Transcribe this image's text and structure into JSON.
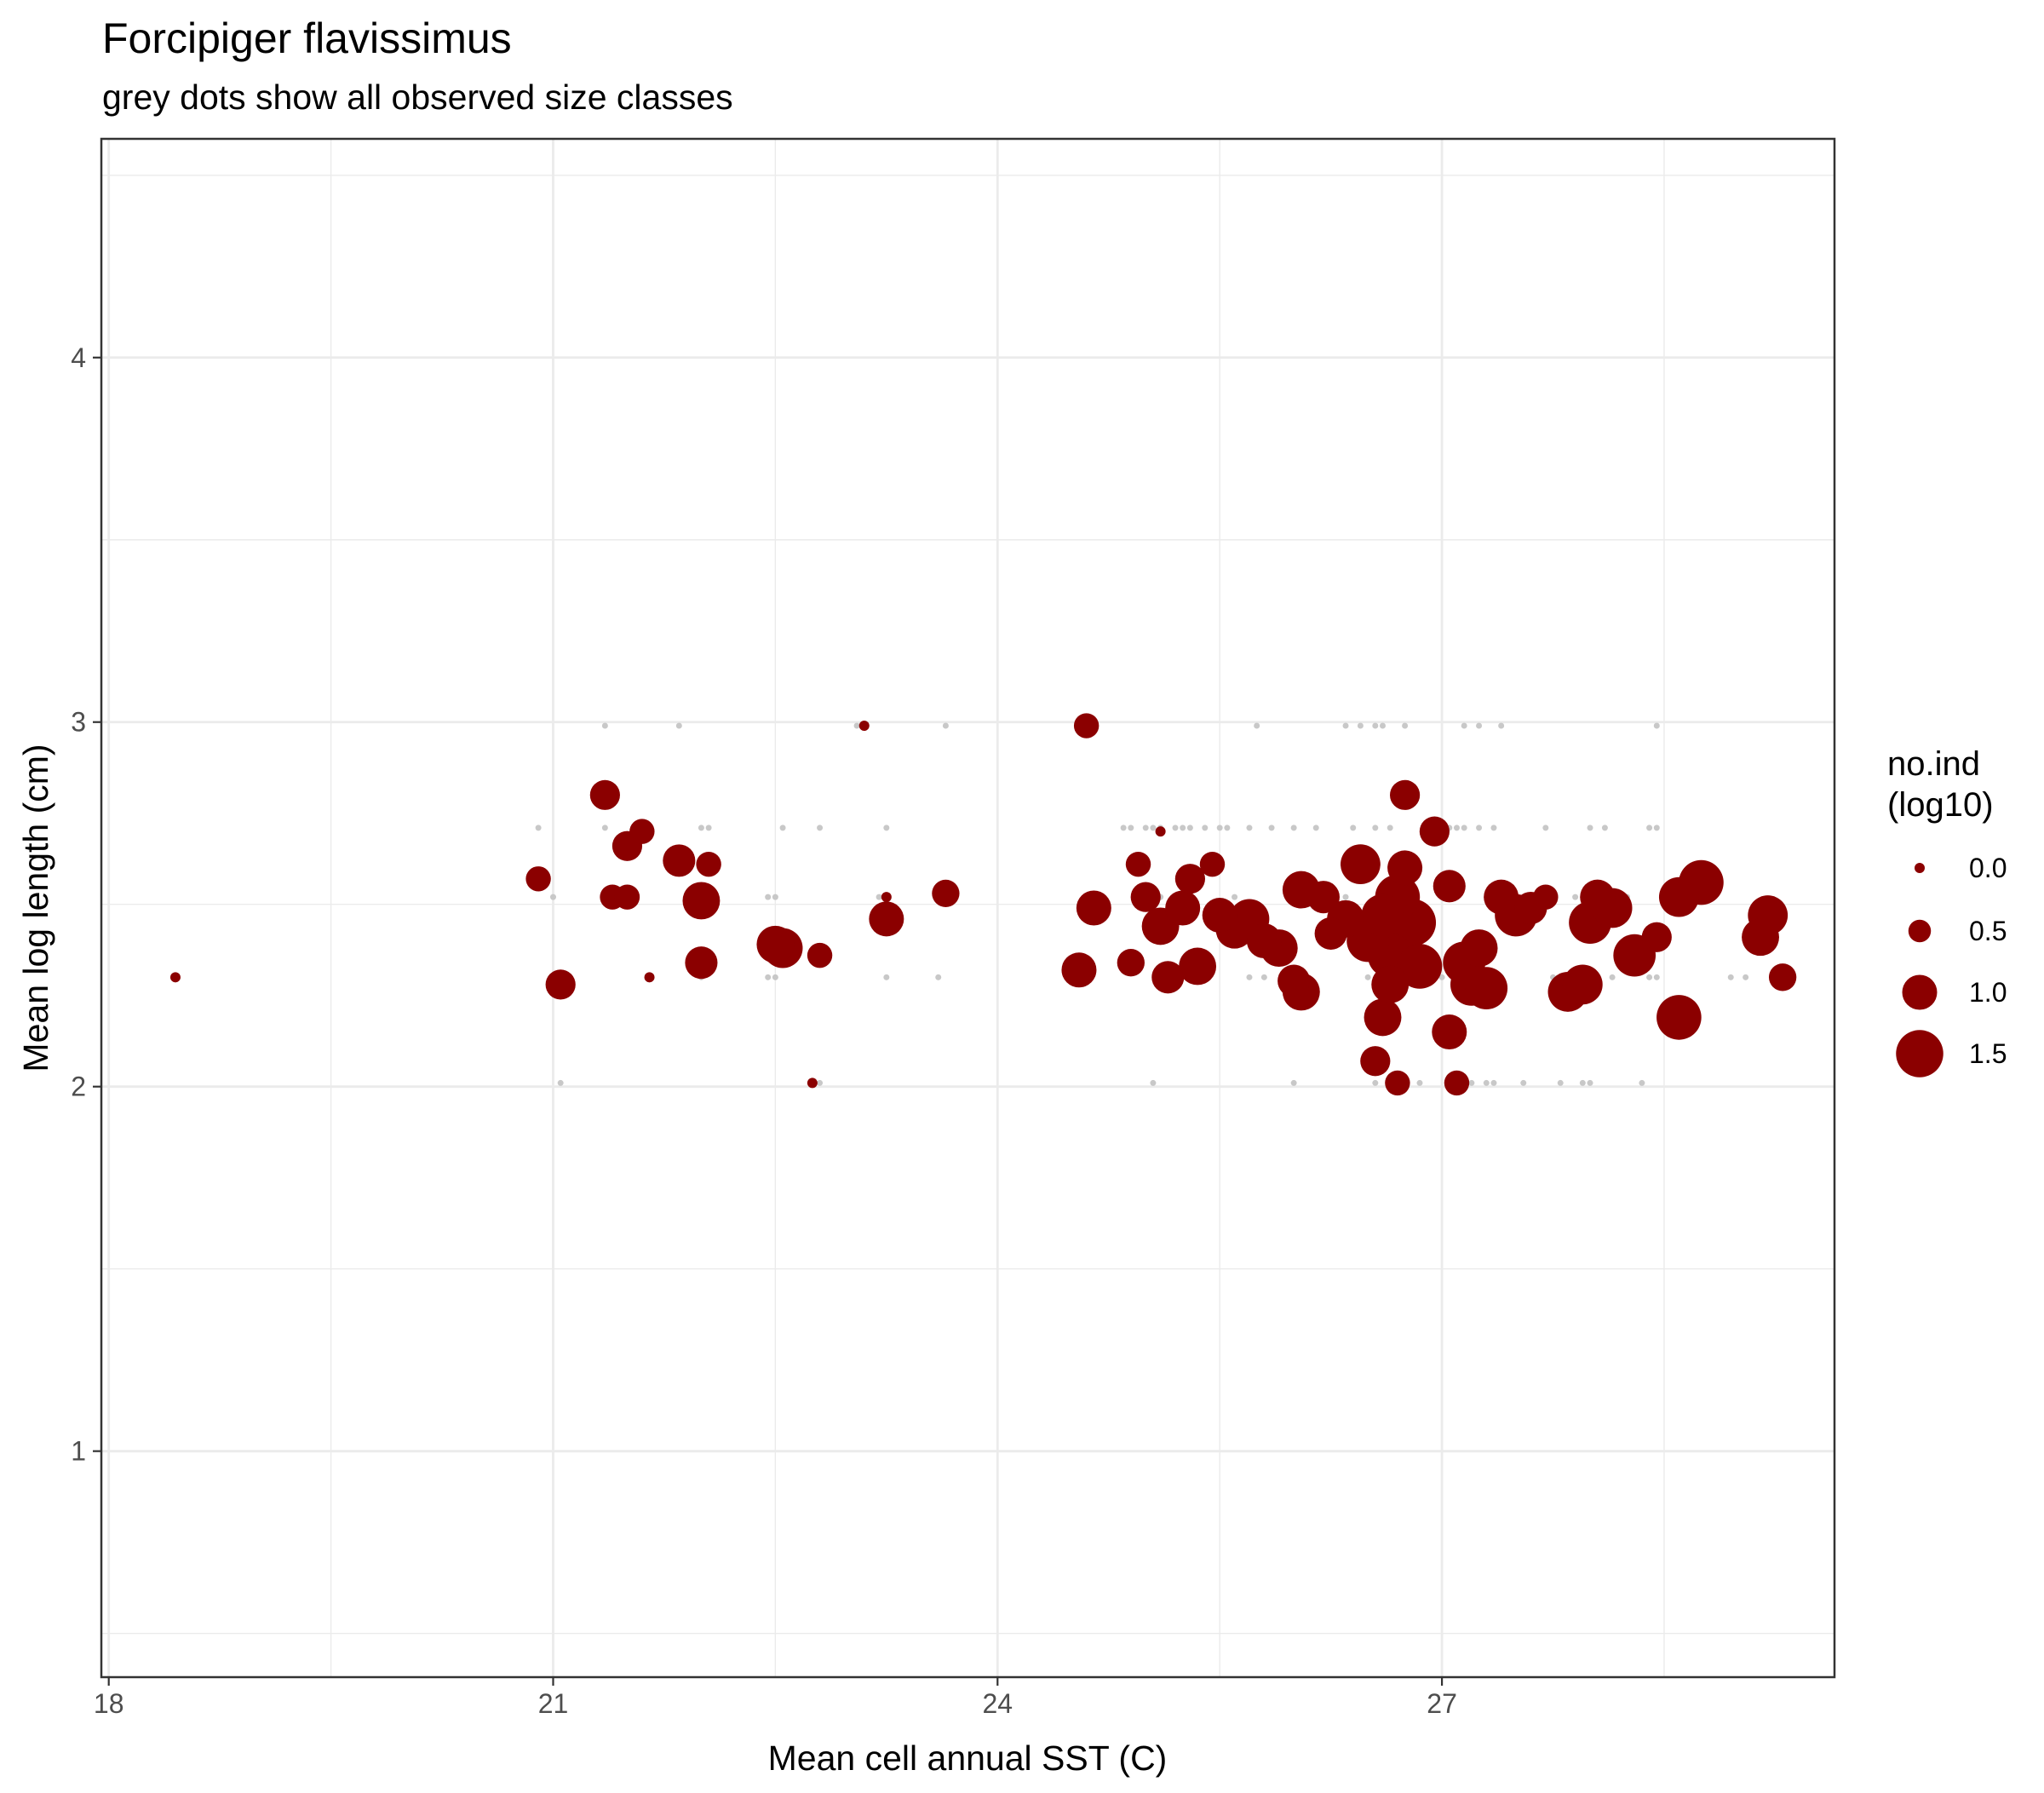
{
  "chart_data": {
    "type": "scatter",
    "title": "Forcipiger flavissimus",
    "subtitle": "grey dots show all observed size classes",
    "xlabel": "Mean cell annual SST (C)",
    "ylabel": "Mean log length (cm)",
    "xlim": [
      17.95,
      29.65
    ],
    "ylim": [
      0.38,
      4.6
    ],
    "x_ticks": [
      18,
      21,
      24,
      27
    ],
    "x_tick_labels": [
      "18",
      "21",
      "24",
      "27"
    ],
    "y_ticks": [
      1,
      2,
      3,
      4
    ],
    "y_tick_labels": [
      "1",
      "2",
      "3",
      "4"
    ],
    "grid": true,
    "legend": {
      "title_lines": [
        "no.ind",
        "(log10)"
      ],
      "position": "right",
      "entries": [
        {
          "label": "0.0",
          "value": 0.0
        },
        {
          "label": "0.5",
          "value": 0.5
        },
        {
          "label": "1.0",
          "value": 1.0
        },
        {
          "label": "1.5",
          "value": 1.5
        }
      ]
    },
    "colors": {
      "points": "#8b0000",
      "grey_points": "#c8c8c8",
      "grid": "#ebebeb",
      "panel_border": "#333333",
      "text": "#000000",
      "tick_text": "#4d4d4d"
    },
    "grey_series": {
      "name": "all observed size classes",
      "points": [
        [
          20.9,
          2.71
        ],
        [
          21.0,
          2.52
        ],
        [
          21.05,
          2.01
        ],
        [
          21.35,
          2.99
        ],
        [
          21.35,
          2.71
        ],
        [
          21.45,
          2.52
        ],
        [
          21.6,
          2.71
        ],
        [
          21.65,
          2.3
        ],
        [
          21.85,
          2.99
        ],
        [
          21.95,
          2.52
        ],
        [
          22.0,
          2.71
        ],
        [
          22.05,
          2.71
        ],
        [
          22.0,
          2.3
        ],
        [
          22.45,
          2.52
        ],
        [
          22.5,
          2.52
        ],
        [
          22.45,
          2.3
        ],
        [
          22.5,
          2.3
        ],
        [
          22.55,
          2.71
        ],
        [
          22.8,
          2.71
        ],
        [
          22.75,
          2.01
        ],
        [
          22.8,
          2.01
        ],
        [
          23.05,
          2.99
        ],
        [
          23.2,
          2.52
        ],
        [
          23.25,
          2.71
        ],
        [
          23.25,
          2.3
        ],
        [
          23.65,
          2.99
        ],
        [
          23.6,
          2.3
        ],
        [
          24.85,
          2.71
        ],
        [
          24.9,
          2.71
        ],
        [
          25.0,
          2.71
        ],
        [
          25.05,
          2.71
        ],
        [
          25.1,
          2.71
        ],
        [
          25.2,
          2.71
        ],
        [
          25.25,
          2.71
        ],
        [
          25.3,
          2.71
        ],
        [
          25.4,
          2.71
        ],
        [
          25.5,
          2.71
        ],
        [
          25.55,
          2.71
        ],
        [
          25.7,
          2.71
        ],
        [
          25.85,
          2.71
        ],
        [
          26.0,
          2.71
        ],
        [
          25.0,
          2.52
        ],
        [
          25.1,
          2.52
        ],
        [
          25.6,
          2.52
        ],
        [
          25.7,
          2.3
        ],
        [
          25.8,
          2.3
        ],
        [
          25.3,
          2.3
        ],
        [
          25.05,
          2.01
        ],
        [
          25.75,
          2.99
        ],
        [
          26.0,
          2.01
        ],
        [
          26.15,
          2.71
        ],
        [
          26.4,
          2.71
        ],
        [
          26.55,
          2.71
        ],
        [
          26.65,
          2.71
        ],
        [
          26.35,
          2.52
        ],
        [
          26.5,
          2.3
        ],
        [
          26.35,
          2.99
        ],
        [
          26.45,
          2.99
        ],
        [
          26.55,
          2.99
        ],
        [
          26.6,
          2.99
        ],
        [
          26.75,
          2.99
        ],
        [
          26.55,
          2.01
        ],
        [
          26.75,
          2.01
        ],
        [
          26.85,
          2.01
        ],
        [
          26.9,
          2.71
        ],
        [
          26.95,
          2.71
        ],
        [
          27.0,
          2.71
        ],
        [
          27.05,
          2.71
        ],
        [
          27.1,
          2.71
        ],
        [
          27.15,
          2.71
        ],
        [
          27.25,
          2.71
        ],
        [
          27.35,
          2.71
        ],
        [
          27.0,
          2.3
        ],
        [
          27.4,
          2.3
        ],
        [
          27.15,
          2.99
        ],
        [
          27.25,
          2.99
        ],
        [
          27.4,
          2.99
        ],
        [
          27.15,
          2.01
        ],
        [
          27.2,
          2.01
        ],
        [
          27.3,
          2.01
        ],
        [
          27.35,
          2.01
        ],
        [
          27.55,
          2.01
        ],
        [
          27.7,
          2.71
        ],
        [
          27.75,
          2.3
        ],
        [
          27.8,
          2.01
        ],
        [
          27.9,
          2.52
        ],
        [
          27.95,
          2.01
        ],
        [
          28.0,
          2.01
        ],
        [
          28.0,
          2.71
        ],
        [
          28.1,
          2.71
        ],
        [
          28.15,
          2.3
        ],
        [
          28.25,
          2.52
        ],
        [
          28.35,
          2.01
        ],
        [
          28.4,
          2.71
        ],
        [
          28.45,
          2.71
        ],
        [
          28.4,
          2.3
        ],
        [
          28.45,
          2.3
        ],
        [
          28.45,
          2.99
        ],
        [
          28.95,
          2.3
        ],
        [
          29.05,
          2.3
        ]
      ]
    },
    "series": [
      {
        "name": "no.ind (log10)",
        "points": [
          [
            18.45,
            2.3,
            0.0
          ],
          [
            20.9,
            2.57,
            0.6
          ],
          [
            21.05,
            2.28,
            0.8
          ],
          [
            21.35,
            2.8,
            0.8
          ],
          [
            21.4,
            2.52,
            0.6
          ],
          [
            21.5,
            2.52,
            0.6
          ],
          [
            21.5,
            2.66,
            0.8
          ],
          [
            21.6,
            2.7,
            0.6
          ],
          [
            21.65,
            2.3,
            0.0
          ],
          [
            21.85,
            2.62,
            0.9
          ],
          [
            22.0,
            2.34,
            0.9
          ],
          [
            22.0,
            2.51,
            1.1
          ],
          [
            22.05,
            2.61,
            0.6
          ],
          [
            22.5,
            2.39,
            1.1
          ],
          [
            22.55,
            2.38,
            1.2
          ],
          [
            22.75,
            2.01,
            0.0
          ],
          [
            22.8,
            2.36,
            0.6
          ],
          [
            23.1,
            2.99,
            0.0
          ],
          [
            23.25,
            2.52,
            0.0
          ],
          [
            23.25,
            2.46,
            1.0
          ],
          [
            23.65,
            2.53,
            0.7
          ],
          [
            24.55,
            2.32,
            1.0
          ],
          [
            24.6,
            2.99,
            0.6
          ],
          [
            24.65,
            2.49,
            1.0
          ],
          [
            24.9,
            2.34,
            0.7
          ],
          [
            24.95,
            2.61,
            0.6
          ],
          [
            25.0,
            2.52,
            0.8
          ],
          [
            25.1,
            2.7,
            0.0
          ],
          [
            25.1,
            2.44,
            1.1
          ],
          [
            25.15,
            2.3,
            0.9
          ],
          [
            25.25,
            2.49,
            1.0
          ],
          [
            25.3,
            2.57,
            0.8
          ],
          [
            25.35,
            2.33,
            1.1
          ],
          [
            25.45,
            2.61,
            0.6
          ],
          [
            25.5,
            2.47,
            1.0
          ],
          [
            25.6,
            2.43,
            1.1
          ],
          [
            25.7,
            2.46,
            1.2
          ],
          [
            25.8,
            2.4,
            1.0
          ],
          [
            25.9,
            2.38,
            1.1
          ],
          [
            26.0,
            2.29,
            0.9
          ],
          [
            26.05,
            2.26,
            1.1
          ],
          [
            26.05,
            2.54,
            1.1
          ],
          [
            26.2,
            2.52,
            0.9
          ],
          [
            26.25,
            2.42,
            0.9
          ],
          [
            26.35,
            2.46,
            1.1
          ],
          [
            26.45,
            2.61,
            1.2
          ],
          [
            26.5,
            2.4,
            1.3
          ],
          [
            26.55,
            2.07,
            0.8
          ],
          [
            26.6,
            2.19,
            1.1
          ],
          [
            26.6,
            2.47,
            1.3
          ],
          [
            26.65,
            2.36,
            1.4
          ],
          [
            26.65,
            2.28,
            1.1
          ],
          [
            26.7,
            2.52,
            1.4
          ],
          [
            26.7,
            2.01,
            0.6
          ],
          [
            26.75,
            2.8,
            0.8
          ],
          [
            26.75,
            2.6,
            1.0
          ],
          [
            26.8,
            2.45,
            1.5
          ],
          [
            26.85,
            2.33,
            1.4
          ],
          [
            26.95,
            2.7,
            0.8
          ],
          [
            27.05,
            2.55,
            0.9
          ],
          [
            27.05,
            2.15,
            1.0
          ],
          [
            27.1,
            2.01,
            0.6
          ],
          [
            27.15,
            2.34,
            1.3
          ],
          [
            27.2,
            2.28,
            1.3
          ],
          [
            27.25,
            2.38,
            1.1
          ],
          [
            27.3,
            2.27,
            1.3
          ],
          [
            27.4,
            2.52,
            1.0
          ],
          [
            27.5,
            2.47,
            1.3
          ],
          [
            27.6,
            2.49,
            0.9
          ],
          [
            27.7,
            2.52,
            0.6
          ],
          [
            27.85,
            2.26,
            1.2
          ],
          [
            27.95,
            2.28,
            1.2
          ],
          [
            28.0,
            2.45,
            1.3
          ],
          [
            28.05,
            2.52,
            1.0
          ],
          [
            28.15,
            2.49,
            1.2
          ],
          [
            28.3,
            2.36,
            1.3
          ],
          [
            28.45,
            2.41,
            0.8
          ],
          [
            28.6,
            2.19,
            1.4
          ],
          [
            28.6,
            2.52,
            1.2
          ],
          [
            28.75,
            2.56,
            1.4
          ],
          [
            29.15,
            2.41,
            1.1
          ],
          [
            29.2,
            2.47,
            1.2
          ],
          [
            29.3,
            2.3,
            0.7
          ]
        ]
      }
    ]
  }
}
